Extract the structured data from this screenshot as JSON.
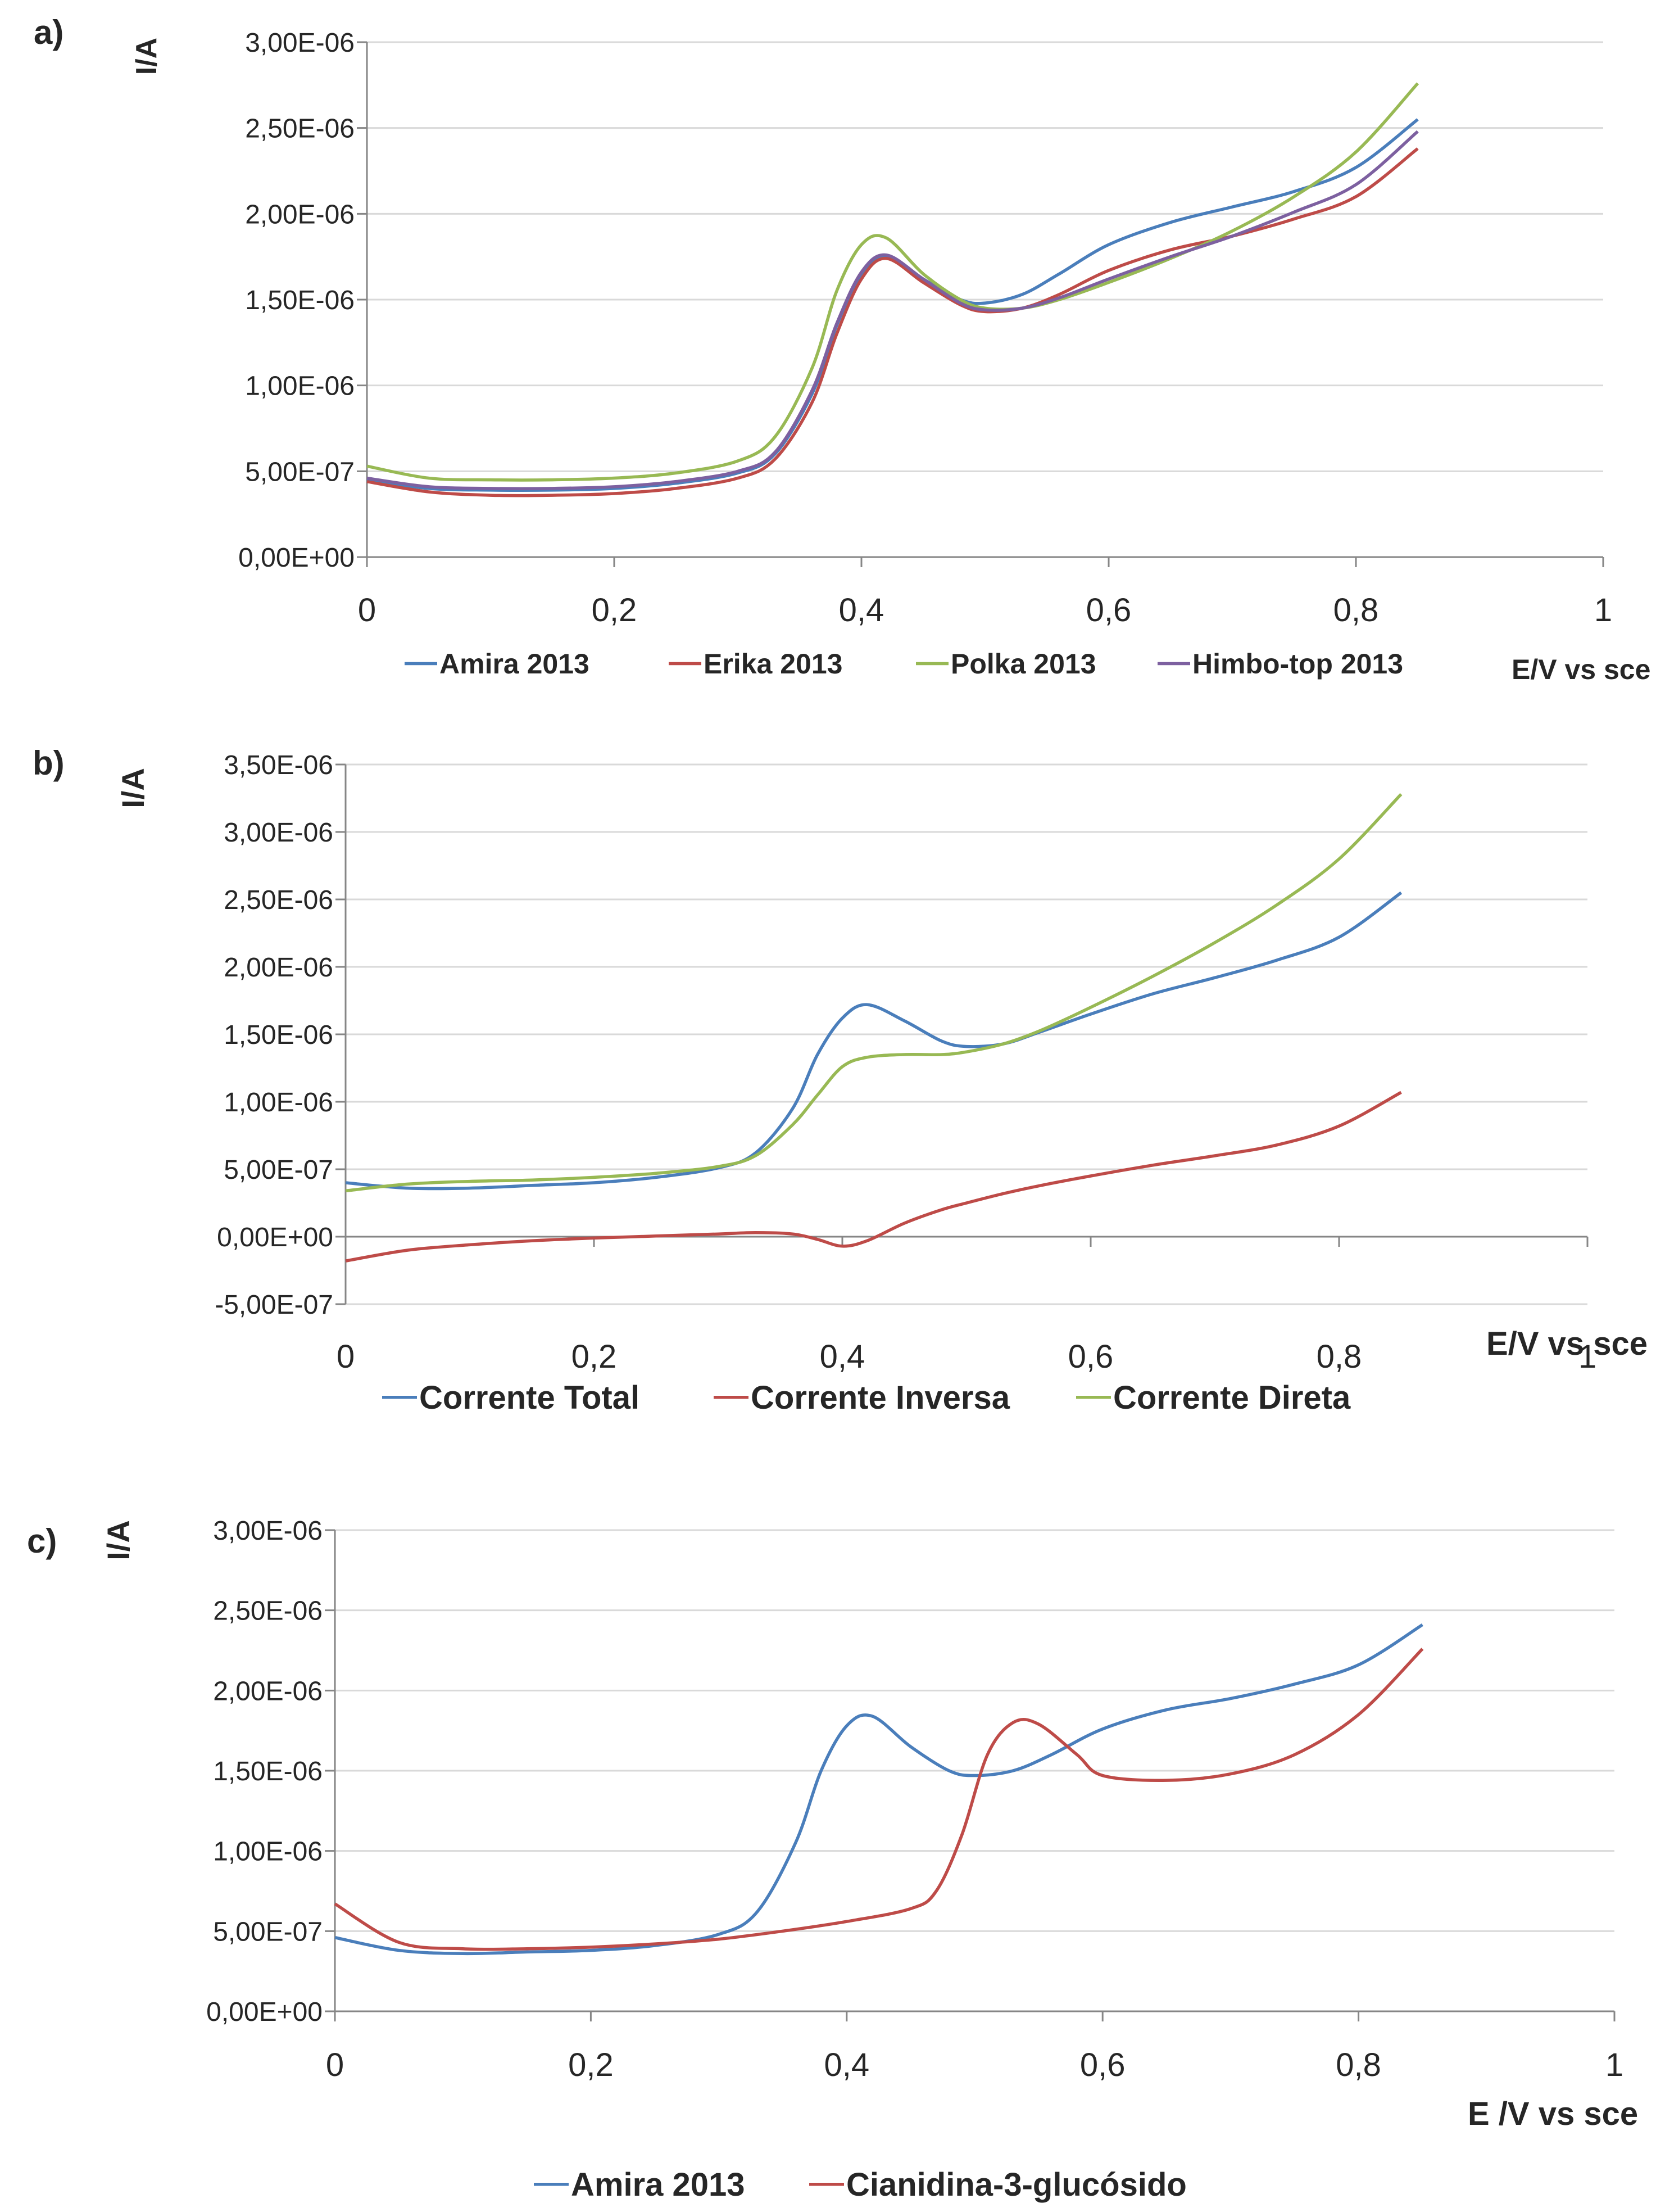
{
  "chart_data": [
    {
      "panel_label": "a)",
      "type": "line",
      "ylabel": "I/A",
      "xlabel": "E/V vs sce",
      "xlim": [
        0,
        1
      ],
      "ylim": [
        0,
        3e-06
      ],
      "x_ticks": [
        "0",
        "0,2",
        "0,4",
        "0,6",
        "0,8",
        "1"
      ],
      "y_ticks": [
        "0,00E+00",
        "5,00E-07",
        "1,00E-06",
        "1,50E-06",
        "2,00E-06",
        "2,50E-06",
        "3,00E-06"
      ],
      "grid": "horizontal",
      "legend_position": "bottom",
      "series": [
        {
          "name": "Amira 2013",
          "color": "#4A7EBB",
          "x": [
            0,
            0.05,
            0.1,
            0.15,
            0.2,
            0.25,
            0.3,
            0.33,
            0.36,
            0.38,
            0.4,
            0.42,
            0.45,
            0.48,
            0.5,
            0.53,
            0.56,
            0.6,
            0.65,
            0.7,
            0.75,
            0.8,
            0.85
          ],
          "y": [
            4.5e-07,
            4e-07,
            3.9e-07,
            3.9e-07,
            4e-07,
            4.3e-07,
            4.9e-07,
            6e-07,
            9.5e-07,
            1.35e-06,
            1.65e-06,
            1.75e-06,
            1.62e-06,
            1.5e-06,
            1.48e-06,
            1.53e-06,
            1.65e-06,
            1.82e-06,
            1.95e-06,
            2.04e-06,
            2.13e-06,
            2.27e-06,
            2.55e-06
          ]
        },
        {
          "name": "Erika 2013",
          "color": "#BE4B48",
          "x": [
            0,
            0.05,
            0.1,
            0.15,
            0.2,
            0.25,
            0.3,
            0.33,
            0.36,
            0.38,
            0.4,
            0.42,
            0.45,
            0.48,
            0.5,
            0.53,
            0.56,
            0.6,
            0.65,
            0.7,
            0.75,
            0.8,
            0.85
          ],
          "y": [
            4.4e-07,
            3.8e-07,
            3.6e-07,
            3.6e-07,
            3.7e-07,
            4e-07,
            4.6e-07,
            5.7e-07,
            9e-07,
            1.3e-06,
            1.62e-06,
            1.74e-06,
            1.6e-06,
            1.47e-06,
            1.43e-06,
            1.45e-06,
            1.53e-06,
            1.67e-06,
            1.79e-06,
            1.87e-06,
            1.97e-06,
            2.1e-06,
            2.38e-06
          ]
        },
        {
          "name": "Polka 2013",
          "color": "#98B954",
          "x": [
            0,
            0.05,
            0.1,
            0.15,
            0.2,
            0.25,
            0.3,
            0.33,
            0.36,
            0.38,
            0.4,
            0.42,
            0.45,
            0.48,
            0.5,
            0.53,
            0.56,
            0.6,
            0.65,
            0.7,
            0.75,
            0.8,
            0.85
          ],
          "y": [
            5.3e-07,
            4.6e-07,
            4.5e-07,
            4.5e-07,
            4.6e-07,
            4.9e-07,
            5.6e-07,
            7e-07,
            1.1e-06,
            1.55e-06,
            1.82e-06,
            1.86e-06,
            1.65e-06,
            1.5e-06,
            1.45e-06,
            1.45e-06,
            1.5e-06,
            1.6e-06,
            1.74e-06,
            1.9e-06,
            2.1e-06,
            2.36e-06,
            2.76e-06
          ]
        },
        {
          "name": "Himbo-top 2013",
          "color": "#7D60A0",
          "x": [
            0,
            0.05,
            0.1,
            0.15,
            0.2,
            0.25,
            0.3,
            0.33,
            0.36,
            0.38,
            0.4,
            0.42,
            0.45,
            0.48,
            0.5,
            0.53,
            0.56,
            0.6,
            0.65,
            0.7,
            0.75,
            0.8,
            0.85
          ],
          "y": [
            4.6e-07,
            4.1e-07,
            4e-07,
            4e-07,
            4.1e-07,
            4.4e-07,
            5e-07,
            6.1e-07,
            9.7e-07,
            1.36e-06,
            1.66e-06,
            1.76e-06,
            1.62e-06,
            1.48e-06,
            1.44e-06,
            1.45e-06,
            1.51e-06,
            1.62e-06,
            1.75e-06,
            1.87e-06,
            2.01e-06,
            2.17e-06,
            2.48e-06
          ]
        }
      ]
    },
    {
      "panel_label": "b)",
      "type": "line",
      "ylabel": "I/A",
      "xlabel": "E/V vs sce",
      "xlim": [
        0,
        1
      ],
      "ylim": [
        -5e-07,
        3.5e-06
      ],
      "x_ticks": [
        "0",
        "0,2",
        "0,4",
        "0,6",
        "0,8",
        "1"
      ],
      "y_ticks": [
        "-5,00E-07",
        "0,00E+00",
        "5,00E-07",
        "1,00E-06",
        "1,50E-06",
        "2,00E-06",
        "2,50E-06",
        "3,00E-06",
        "3,50E-06"
      ],
      "grid": "horizontal",
      "legend_position": "bottom",
      "series": [
        {
          "name": "Corrente Total",
          "color": "#4A7EBB",
          "x": [
            0,
            0.05,
            0.1,
            0.15,
            0.2,
            0.25,
            0.3,
            0.33,
            0.36,
            0.38,
            0.4,
            0.42,
            0.45,
            0.48,
            0.5,
            0.53,
            0.56,
            0.6,
            0.65,
            0.7,
            0.75,
            0.8,
            0.85
          ],
          "y": [
            4e-07,
            3.6e-07,
            3.6e-07,
            3.8e-07,
            4e-07,
            4.4e-07,
            5.1e-07,
            6.2e-07,
            9.5e-07,
            1.35e-06,
            1.62e-06,
            1.72e-06,
            1.6e-06,
            1.45e-06,
            1.41e-06,
            1.43e-06,
            1.52e-06,
            1.65e-06,
            1.8e-06,
            1.92e-06,
            2.05e-06,
            2.22e-06,
            2.55e-06
          ]
        },
        {
          "name": "Corrente Inversa",
          "color": "#BE4B48",
          "x": [
            0,
            0.05,
            0.1,
            0.15,
            0.2,
            0.25,
            0.3,
            0.33,
            0.36,
            0.38,
            0.4,
            0.42,
            0.45,
            0.48,
            0.5,
            0.53,
            0.56,
            0.6,
            0.65,
            0.7,
            0.75,
            0.8,
            0.85
          ],
          "y": [
            -1.8e-07,
            -1e-07,
            -6e-08,
            -3e-08,
            -1e-08,
            5e-09,
            2e-08,
            3e-08,
            2e-08,
            -2e-08,
            -7e-08,
            -3e-08,
            1e-07,
            2e-07,
            2.5e-07,
            3.2e-07,
            3.8e-07,
            4.5e-07,
            5.3e-07,
            6e-07,
            6.8e-07,
            8.2e-07,
            1.07e-06
          ]
        },
        {
          "name": "Corrente Direta",
          "color": "#98B954",
          "x": [
            0,
            0.05,
            0.1,
            0.15,
            0.2,
            0.25,
            0.3,
            0.33,
            0.36,
            0.38,
            0.4,
            0.42,
            0.45,
            0.48,
            0.5,
            0.53,
            0.56,
            0.6,
            0.65,
            0.7,
            0.75,
            0.8,
            0.85
          ],
          "y": [
            3.4e-07,
            3.9e-07,
            4.1e-07,
            4.2e-07,
            4.4e-07,
            4.7e-07,
            5.2e-07,
            6e-07,
            8.3e-07,
            1.05e-06,
            1.26e-06,
            1.33e-06,
            1.35e-06,
            1.35e-06,
            1.37e-06,
            1.43e-06,
            1.53e-06,
            1.7e-06,
            1.93e-06,
            2.18e-06,
            2.46e-06,
            2.8e-06,
            3.28e-06
          ]
        }
      ]
    },
    {
      "panel_label": "c)",
      "type": "line",
      "ylabel": "I/A",
      "xlabel": "E /V vs sce",
      "xlim": [
        0,
        1
      ],
      "ylim": [
        0,
        3e-06
      ],
      "x_ticks": [
        "0",
        "0,2",
        "0,4",
        "0,6",
        "0,8",
        "1"
      ],
      "y_ticks": [
        "0,00E+00",
        "5,00E-07",
        "1,00E-06",
        "1,50E-06",
        "2,00E-06",
        "2,50E-06",
        "3,00E-06"
      ],
      "grid": "horizontal",
      "legend_position": "bottom",
      "series": [
        {
          "name": "Amira 2013",
          "color": "#4A7EBB",
          "x": [
            0,
            0.05,
            0.1,
            0.15,
            0.2,
            0.25,
            0.3,
            0.33,
            0.36,
            0.38,
            0.4,
            0.42,
            0.45,
            0.48,
            0.5,
            0.53,
            0.56,
            0.6,
            0.65,
            0.7,
            0.75,
            0.8,
            0.85
          ],
          "y": [
            4.6e-07,
            3.8e-07,
            3.6e-07,
            3.7e-07,
            3.8e-07,
            4.1e-07,
            4.8e-07,
            6.2e-07,
            1.05e-06,
            1.5e-06,
            1.78e-06,
            1.84e-06,
            1.65e-06,
            1.5e-06,
            1.47e-06,
            1.5e-06,
            1.6e-06,
            1.76e-06,
            1.88e-06,
            1.95e-06,
            2.04e-06,
            2.16e-06,
            2.41e-06
          ]
        },
        {
          "name": "Cianidina-3-glucósido",
          "color": "#BE4B48",
          "x": [
            0,
            0.05,
            0.1,
            0.15,
            0.2,
            0.25,
            0.3,
            0.35,
            0.4,
            0.45,
            0.47,
            0.49,
            0.51,
            0.53,
            0.55,
            0.58,
            0.6,
            0.65,
            0.7,
            0.75,
            0.8,
            0.85
          ],
          "y": [
            6.7e-07,
            4.3e-07,
            3.9e-07,
            3.9e-07,
            4e-07,
            4.2e-07,
            4.5e-07,
            5e-07,
            5.6e-07,
            6.4e-07,
            7.5e-07,
            1.1e-06,
            1.6e-06,
            1.8e-06,
            1.79e-06,
            1.6e-06,
            1.47e-06,
            1.44e-06,
            1.48e-06,
            1.6e-06,
            1.85e-06,
            2.26e-06
          ]
        }
      ]
    }
  ]
}
